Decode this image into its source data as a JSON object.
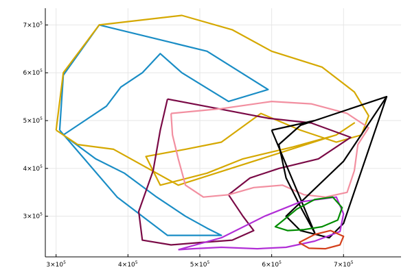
{
  "chart_data": {
    "type": "line",
    "title": "",
    "xlabel": "",
    "ylabel": "",
    "xlim": [
      285000,
      780000
    ],
    "ylim": [
      215000,
      735000
    ],
    "grid": true,
    "legend": "none",
    "x_ticks": [
      {
        "value": 300000,
        "base": "3×10",
        "exp": "5"
      },
      {
        "value": 400000,
        "base": "4×10",
        "exp": "5"
      },
      {
        "value": 500000,
        "base": "5×10",
        "exp": "5"
      },
      {
        "value": 600000,
        "base": "6×10",
        "exp": "5"
      },
      {
        "value": 700000,
        "base": "7×10",
        "exp": "5"
      }
    ],
    "y_ticks": [
      {
        "value": 300000,
        "base": "3×10",
        "exp": "5"
      },
      {
        "value": 400000,
        "base": "4×10",
        "exp": "5"
      },
      {
        "value": 500000,
        "base": "5×10",
        "exp": "5"
      },
      {
        "value": 600000,
        "base": "6×10",
        "exp": "5"
      },
      {
        "value": 700000,
        "base": "7×10",
        "exp": "5"
      }
    ],
    "series": [
      {
        "color": "#1a8dc5",
        "points": [
          [
            305000,
            480000
          ],
          [
            310000,
            595000
          ],
          [
            360000,
            700000
          ],
          [
            510000,
            645000
          ],
          [
            595000,
            565000
          ],
          [
            540000,
            540000
          ],
          [
            475000,
            600000
          ],
          [
            445000,
            640000
          ],
          [
            420000,
            600000
          ],
          [
            390000,
            570000
          ],
          [
            370000,
            530000
          ],
          [
            340000,
            500000
          ],
          [
            310000,
            470000
          ],
          [
            355000,
            420000
          ],
          [
            395000,
            390000
          ],
          [
            440000,
            340000
          ],
          [
            480000,
            300000
          ],
          [
            510000,
            275000
          ],
          [
            530000,
            260000
          ],
          [
            455000,
            260000
          ],
          [
            385000,
            340000
          ],
          [
            305000,
            480000
          ]
        ]
      },
      {
        "color": "#d5a800",
        "points": [
          [
            300000,
            480000
          ],
          [
            310000,
            600000
          ],
          [
            360000,
            700000
          ],
          [
            475000,
            720000
          ],
          [
            545000,
            690000
          ],
          [
            600000,
            645000
          ],
          [
            670000,
            612000
          ],
          [
            715000,
            560000
          ],
          [
            735000,
            510000
          ],
          [
            725000,
            470000
          ],
          [
            690000,
            455000
          ],
          [
            640000,
            480000
          ],
          [
            585000,
            515000
          ],
          [
            530000,
            455000
          ],
          [
            480000,
            440000
          ],
          [
            425000,
            425000
          ],
          [
            445000,
            365000
          ],
          [
            510000,
            390000
          ],
          [
            560000,
            420000
          ],
          [
            630000,
            445000
          ],
          [
            690000,
            470000
          ],
          [
            715000,
            495000
          ],
          [
            690000,
            470000
          ],
          [
            470000,
            365000
          ],
          [
            380000,
            440000
          ],
          [
            330000,
            450000
          ],
          [
            300000,
            480000
          ]
        ]
      },
      {
        "color": "#7a0a46",
        "points": [
          [
            455000,
            545000
          ],
          [
            525000,
            525000
          ],
          [
            595000,
            505000
          ],
          [
            655000,
            495000
          ],
          [
            710000,
            465000
          ],
          [
            665000,
            420000
          ],
          [
            610000,
            400000
          ],
          [
            570000,
            380000
          ],
          [
            540000,
            345000
          ],
          [
            560000,
            300000
          ],
          [
            575000,
            270000
          ],
          [
            545000,
            250000
          ],
          [
            500000,
            245000
          ],
          [
            460000,
            240000
          ],
          [
            420000,
            250000
          ],
          [
            415000,
            310000
          ],
          [
            435000,
            395000
          ],
          [
            445000,
            480000
          ],
          [
            455000,
            545000
          ]
        ]
      },
      {
        "color": "#f28fa0",
        "points": [
          [
            460000,
            515000
          ],
          [
            530000,
            525000
          ],
          [
            600000,
            540000
          ],
          [
            655000,
            535000
          ],
          [
            705000,
            515000
          ],
          [
            735000,
            485000
          ],
          [
            720000,
            450000
          ],
          [
            715000,
            395000
          ],
          [
            705000,
            350000
          ],
          [
            675000,
            340000
          ],
          [
            645000,
            345000
          ],
          [
            615000,
            365000
          ],
          [
            575000,
            360000
          ],
          [
            540000,
            345000
          ],
          [
            505000,
            340000
          ],
          [
            480000,
            365000
          ],
          [
            470000,
            420000
          ],
          [
            462000,
            470000
          ],
          [
            460000,
            515000
          ]
        ]
      },
      {
        "color": "#000000",
        "points": [
          [
            600000,
            480000
          ],
          [
            660000,
            500000
          ],
          [
            760000,
            550000
          ],
          [
            700000,
            415000
          ],
          [
            620000,
            300000
          ],
          [
            640000,
            270000
          ],
          [
            680000,
            255000
          ],
          [
            700000,
            285000
          ],
          [
            760000,
            550000
          ],
          [
            640000,
            490000
          ],
          [
            610000,
            450000
          ],
          [
            620000,
            380000
          ],
          [
            640000,
            320000
          ],
          [
            660000,
            265000
          ],
          [
            600000,
            480000
          ]
        ]
      },
      {
        "color": "#b12ed6",
        "points": [
          [
            470000,
            230000
          ],
          [
            530000,
            255000
          ],
          [
            590000,
            300000
          ],
          [
            640000,
            330000
          ],
          [
            690000,
            340000
          ],
          [
            700000,
            305000
          ],
          [
            695000,
            268000
          ],
          [
            660000,
            248000
          ],
          [
            620000,
            235000
          ],
          [
            580000,
            232000
          ],
          [
            530000,
            235000
          ],
          [
            490000,
            232000
          ],
          [
            470000,
            230000
          ]
        ]
      },
      {
        "color": "#008c00",
        "points": [
          [
            615000,
            290000
          ],
          [
            635000,
            315000
          ],
          [
            660000,
            335000
          ],
          [
            685000,
            340000
          ],
          [
            698000,
            318000
          ],
          [
            692000,
            292000
          ],
          [
            670000,
            278000
          ],
          [
            645000,
            272000
          ],
          [
            622000,
            270000
          ],
          [
            605000,
            278000
          ],
          [
            615000,
            290000
          ]
        ]
      },
      {
        "color": "#d43f1a",
        "points": [
          [
            638000,
            245000
          ],
          [
            660000,
            262000
          ],
          [
            682000,
            270000
          ],
          [
            700000,
            258000
          ],
          [
            695000,
            240000
          ],
          [
            675000,
            232000
          ],
          [
            652000,
            233000
          ],
          [
            638000,
            245000
          ]
        ]
      }
    ]
  }
}
